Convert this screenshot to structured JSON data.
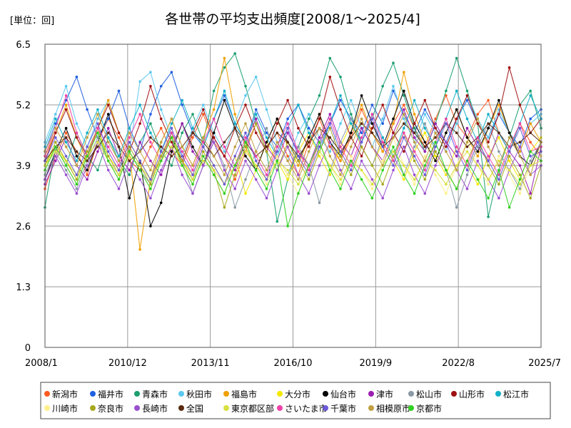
{
  "chart_data": {
    "type": "line",
    "title": "各世帯の平均支出頻度[2008/1～2025/4]",
    "unit_label": "[単位：回]",
    "xlabel": "",
    "ylabel": "",
    "ylim": [
      0,
      6.5
    ],
    "y_ticks": [
      "0",
      "1.3",
      "2.6",
      "3.9",
      "5.2",
      "6.5"
    ],
    "x_ticks": [
      "2008/1",
      "2010/12",
      "2013/11",
      "2016/10",
      "2019/9",
      "2022/8",
      "2025/7"
    ],
    "x_range": [
      "2008/1",
      "2025/7"
    ],
    "grid": true,
    "legend_position": "bottom",
    "series": [
      {
        "name": "新潟市",
        "color": "#ff5a1f",
        "values": [
          3.4,
          4.1,
          4.6,
          4.2,
          3.7,
          4.4,
          4.9,
          4.5,
          4.0,
          3.8,
          4.3,
          4.7,
          4.2,
          3.9,
          4.5,
          5.0,
          4.4,
          4.1,
          3.6,
          4.2,
          4.8,
          4.3,
          4.6,
          4.1,
          3.7,
          4.4,
          4.9,
          4.3,
          4.0,
          4.5,
          5.1,
          4.6,
          4.2,
          4.8,
          5.2,
          4.7,
          4.3,
          4.9,
          5.4,
          4.8,
          4.5,
          5.0,
          5.3,
          4.6,
          4.2,
          4.8,
          4.4,
          4.1
        ]
      },
      {
        "name": "福井市",
        "color": "#1f5fe0",
        "values": [
          4.2,
          4.8,
          5.3,
          5.8,
          5.1,
          4.5,
          4.9,
          5.5,
          4.7,
          4.2,
          5.0,
          5.6,
          5.9,
          5.2,
          4.6,
          4.3,
          4.9,
          5.4,
          4.8,
          4.4,
          5.1,
          4.6,
          4.3,
          4.9,
          5.2,
          4.7,
          4.4,
          4.8,
          5.3,
          4.9,
          4.6,
          5.2,
          4.8,
          5.5,
          5.0,
          4.6,
          5.1,
          4.7,
          4.4,
          4.9,
          5.3,
          4.8,
          4.5,
          5.0,
          4.6,
          4.3,
          4.9,
          5.1
        ]
      },
      {
        "name": "青森市",
        "color": "#1a9e6e",
        "values": [
          3.0,
          4.3,
          3.9,
          4.6,
          4.1,
          3.8,
          4.5,
          4.0,
          3.7,
          4.4,
          4.8,
          4.2,
          3.9,
          4.6,
          5.0,
          4.4,
          5.5,
          6.0,
          6.3,
          5.6,
          4.8,
          4.2,
          2.7,
          3.6,
          4.3,
          4.9,
          5.4,
          6.2,
          5.8,
          5.0,
          4.4,
          4.9,
          5.6,
          6.1,
          5.4,
          4.7,
          4.2,
          4.8,
          5.5,
          6.2,
          5.5,
          4.8,
          2.8,
          3.8,
          4.5,
          5.2,
          5.5,
          4.7
        ]
      },
      {
        "name": "秋田市",
        "color": "#5bc8f0",
        "values": [
          4.4,
          5.0,
          5.6,
          4.8,
          4.3,
          4.9,
          5.3,
          4.6,
          4.2,
          5.7,
          5.9,
          5.1,
          4.5,
          4.1,
          4.7,
          5.2,
          4.6,
          4.2,
          4.8,
          5.4,
          5.8,
          5.1,
          4.4,
          4.0,
          4.6,
          5.0,
          4.5,
          4.2,
          4.8,
          5.3,
          4.7,
          4.3,
          4.9,
          5.6,
          4.9,
          4.4,
          5.0,
          4.6,
          4.2,
          4.8,
          5.4,
          4.9,
          4.5,
          5.1,
          4.6,
          4.2,
          4.8,
          5.0
        ]
      },
      {
        "name": "福島市",
        "color": "#f0a000",
        "values": [
          4.1,
          4.6,
          5.2,
          4.5,
          4.0,
          4.7,
          5.3,
          4.6,
          4.2,
          2.1,
          3.6,
          4.4,
          4.9,
          4.3,
          3.9,
          4.5,
          5.1,
          6.2,
          5.0,
          4.3,
          3.8,
          4.4,
          4.9,
          4.3,
          3.9,
          4.5,
          5.0,
          4.4,
          4.0,
          4.6,
          5.2,
          4.6,
          4.2,
          4.8,
          5.9,
          5.0,
          4.4,
          4.0,
          4.6,
          5.1,
          4.5,
          4.1,
          4.7,
          5.2,
          4.6,
          4.2,
          4.8,
          4.4
        ]
      },
      {
        "name": "大分市",
        "color": "#f5e800",
        "values": [
          3.9,
          4.3,
          4.0,
          3.6,
          4.2,
          4.6,
          4.1,
          3.8,
          4.4,
          4.0,
          3.6,
          4.1,
          4.5,
          4.0,
          3.7,
          4.3,
          3.9,
          3.5,
          4.1,
          3.3,
          3.8,
          4.4,
          4.0,
          3.6,
          4.2,
          4.6,
          4.1,
          3.7,
          4.3,
          4.8,
          4.3,
          3.9,
          4.4,
          4.0,
          3.6,
          4.2,
          4.6,
          4.1,
          3.7,
          4.3,
          3.9,
          3.5,
          4.1,
          4.5,
          4.0,
          3.6,
          4.2,
          4.5
        ]
      },
      {
        "name": "仙台市",
        "color": "#000000",
        "values": [
          3.6,
          4.2,
          4.7,
          4.1,
          3.8,
          4.4,
          5.0,
          4.3,
          3.2,
          4.0,
          2.6,
          3.1,
          4.2,
          4.8,
          4.3,
          3.9,
          4.6,
          5.3,
          4.7,
          4.1,
          3.8,
          4.4,
          4.9,
          4.4,
          4.0,
          4.5,
          5.0,
          4.4,
          4.1,
          4.6,
          5.4,
          4.8,
          4.3,
          4.9,
          5.5,
          4.8,
          4.4,
          4.0,
          4.6,
          5.1,
          4.5,
          4.2,
          4.7,
          5.3,
          4.6,
          4.1,
          3.9,
          4.4
        ]
      },
      {
        "name": "津市",
        "color": "#9a1fb0",
        "values": [
          3.5,
          4.0,
          4.5,
          3.9,
          3.6,
          4.2,
          4.7,
          4.1,
          3.8,
          4.4,
          4.0,
          3.7,
          4.3,
          4.8,
          4.2,
          3.9,
          4.5,
          4.1,
          3.8,
          4.4,
          4.9,
          4.3,
          4.0,
          4.6,
          4.2,
          3.9,
          4.5,
          5.0,
          4.4,
          4.1,
          4.7,
          4.3,
          4.0,
          4.6,
          5.1,
          4.5,
          4.2,
          4.8,
          4.4,
          4.1,
          4.7,
          4.3,
          4.0,
          4.6,
          4.2,
          3.9,
          3.3,
          4.3
        ]
      },
      {
        "name": "松山市",
        "color": "#8a9aa6",
        "values": [
          3.7,
          4.2,
          3.8,
          3.4,
          4.0,
          4.5,
          4.0,
          3.6,
          4.2,
          3.8,
          3.5,
          4.1,
          4.6,
          4.0,
          3.3,
          3.9,
          4.4,
          3.9,
          3.0,
          3.6,
          4.2,
          4.7,
          4.1,
          3.7,
          4.3,
          3.9,
          3.1,
          3.8,
          4.4,
          4.9,
          4.3,
          3.9,
          4.5,
          4.1,
          3.7,
          4.3,
          4.8,
          4.2,
          3.8,
          3.0,
          3.7,
          4.3,
          4.8,
          4.2,
          3.8,
          3.4,
          4.0,
          4.4
        ]
      },
      {
        "name": "山形市",
        "color": "#a01010",
        "values": [
          4.0,
          4.6,
          5.1,
          4.5,
          4.1,
          4.7,
          5.2,
          4.6,
          4.2,
          4.8,
          5.6,
          4.9,
          4.4,
          4.0,
          4.6,
          5.1,
          4.5,
          4.1,
          4.7,
          5.2,
          4.6,
          4.2,
          4.8,
          5.3,
          4.7,
          4.3,
          4.9,
          5.8,
          5.1,
          4.5,
          4.1,
          4.7,
          5.2,
          4.6,
          4.2,
          4.8,
          5.3,
          4.7,
          4.3,
          4.9,
          5.4,
          4.8,
          4.4,
          5.0,
          6.0,
          5.2,
          4.6,
          4.9
        ]
      },
      {
        "name": "松江市",
        "color": "#10b0c8",
        "values": [
          4.3,
          4.9,
          4.4,
          4.0,
          4.6,
          5.1,
          4.5,
          4.1,
          4.7,
          5.2,
          4.6,
          4.2,
          4.8,
          5.3,
          4.7,
          4.3,
          4.9,
          5.5,
          4.8,
          4.4,
          5.0,
          4.5,
          4.1,
          4.7,
          5.2,
          4.6,
          4.2,
          4.8,
          5.4,
          4.8,
          4.4,
          5.0,
          4.5,
          4.1,
          4.7,
          5.3,
          4.7,
          4.3,
          4.9,
          5.5,
          4.9,
          4.4,
          5.0,
          4.6,
          4.2,
          4.8,
          5.4,
          4.9
        ]
      },
      {
        "name": "川崎市",
        "color": "#fff08a",
        "values": [
          3.8,
          4.3,
          3.9,
          3.5,
          4.1,
          4.6,
          4.0,
          3.6,
          4.2,
          3.8,
          3.4,
          4.0,
          4.5,
          3.9,
          3.5,
          4.1,
          3.7,
          3.3,
          3.9,
          4.4,
          3.9,
          3.5,
          4.1,
          3.7,
          3.3,
          3.9,
          4.4,
          3.9,
          3.5,
          4.1,
          3.8,
          3.4,
          4.0,
          4.5,
          3.9,
          3.5,
          4.1,
          3.7,
          3.3,
          3.9,
          4.4,
          3.9,
          3.5,
          4.1,
          3.7,
          3.3,
          3.9,
          4.1
        ]
      },
      {
        "name": "奈良市",
        "color": "#a8a820",
        "values": [
          3.9,
          4.4,
          4.0,
          3.6,
          4.2,
          4.7,
          4.1,
          3.7,
          4.3,
          3.9,
          3.5,
          4.1,
          4.6,
          4.0,
          3.6,
          4.2,
          3.8,
          3.0,
          3.7,
          4.3,
          4.8,
          4.2,
          3.8,
          4.4,
          4.0,
          3.6,
          4.2,
          4.7,
          4.1,
          3.7,
          4.3,
          3.9,
          3.5,
          4.1,
          4.6,
          4.0,
          3.6,
          4.2,
          3.8,
          3.4,
          4.0,
          4.5,
          3.9,
          3.5,
          4.1,
          3.7,
          3.2,
          3.9
        ]
      },
      {
        "name": "長崎市",
        "color": "#9a4fd0",
        "values": [
          3.6,
          4.1,
          3.7,
          3.3,
          3.9,
          4.4,
          3.8,
          3.4,
          4.0,
          3.6,
          3.2,
          3.8,
          4.3,
          3.7,
          3.3,
          3.9,
          4.4,
          3.8,
          3.4,
          4.0,
          3.6,
          3.2,
          3.8,
          4.3,
          3.7,
          3.3,
          3.9,
          4.4,
          3.8,
          3.4,
          4.0,
          3.6,
          3.2,
          3.8,
          4.3,
          3.7,
          3.3,
          3.9,
          4.4,
          3.8,
          3.4,
          4.0,
          3.6,
          3.2,
          3.8,
          4.3,
          3.7,
          3.9
        ]
      },
      {
        "name": "全国",
        "color": "#5a2a10",
        "values": [
          4.0,
          4.3,
          4.5,
          4.2,
          4.0,
          4.3,
          4.6,
          4.3,
          4.0,
          4.2,
          4.5,
          4.3,
          4.1,
          4.3,
          4.6,
          4.4,
          4.1,
          4.4,
          4.7,
          4.4,
          4.1,
          4.3,
          4.6,
          4.4,
          4.1,
          4.4,
          4.7,
          4.5,
          4.2,
          4.5,
          4.8,
          4.6,
          4.3,
          4.5,
          4.8,
          4.6,
          4.3,
          4.5,
          4.8,
          4.6,
          4.3,
          4.5,
          4.8,
          4.6,
          4.3,
          4.4,
          4.6,
          4.4
        ]
      },
      {
        "name": "東京都区部",
        "color": "#d8e040",
        "values": [
          3.9,
          4.2,
          4.0,
          3.7,
          4.1,
          4.4,
          4.0,
          3.7,
          4.1,
          3.9,
          3.6,
          4.0,
          4.3,
          3.9,
          3.6,
          4.0,
          3.8,
          3.5,
          3.9,
          4.2,
          3.9,
          3.6,
          4.0,
          3.8,
          3.5,
          3.9,
          4.2,
          3.9,
          3.6,
          4.0,
          3.8,
          3.5,
          3.9,
          4.2,
          3.9,
          3.6,
          4.0,
          3.8,
          3.5,
          3.9,
          4.2,
          3.9,
          3.6,
          4.0,
          3.8,
          3.5,
          3.9,
          4.0
        ]
      },
      {
        "name": "さいたま市",
        "color": "#f040a8",
        "values": [
          4.1,
          4.7,
          5.4,
          4.6,
          4.1,
          4.7,
          4.3,
          3.9,
          4.5,
          5.0,
          4.4,
          4.0,
          4.6,
          4.2,
          3.8,
          4.4,
          4.9,
          4.3,
          3.9,
          4.5,
          4.1,
          3.7,
          4.3,
          4.8,
          4.2,
          3.8,
          4.4,
          4.9,
          4.3,
          3.9,
          4.5,
          5.0,
          4.4,
          4.0,
          4.6,
          4.2,
          3.8,
          4.4,
          4.9,
          4.3,
          3.9,
          4.5,
          4.1,
          3.7,
          4.3,
          4.8,
          4.2,
          4.3
        ]
      },
      {
        "name": "千葉市",
        "color": "#6a5ad8",
        "values": [
          4.0,
          4.5,
          4.1,
          3.7,
          4.3,
          4.8,
          4.2,
          3.8,
          4.4,
          4.0,
          3.6,
          4.2,
          4.7,
          4.1,
          3.7,
          4.3,
          3.9,
          3.5,
          4.1,
          4.6,
          4.0,
          3.6,
          4.2,
          4.7,
          4.1,
          3.7,
          4.3,
          4.8,
          4.2,
          3.8,
          4.4,
          4.9,
          4.3,
          3.9,
          4.5,
          4.1,
          3.7,
          4.3,
          4.8,
          4.2,
          3.8,
          4.4,
          4.0,
          3.6,
          4.2,
          4.7,
          4.1,
          4.2
        ]
      },
      {
        "name": "相模原市",
        "color": "#c0a040",
        "values": [
          4.2,
          4.7,
          4.3,
          3.9,
          4.5,
          5.0,
          4.4,
          4.0,
          4.6,
          4.2,
          3.8,
          4.4,
          4.9,
          4.3,
          3.9,
          4.5,
          4.1,
          3.7,
          4.3,
          4.8,
          4.2,
          3.8,
          4.4,
          4.0,
          3.6,
          4.2,
          4.7,
          4.1,
          3.7,
          4.3,
          4.9,
          4.3,
          3.9,
          4.5,
          5.0,
          4.4,
          4.0,
          4.6,
          4.2,
          3.8,
          4.4,
          4.9,
          4.3,
          3.9,
          4.5,
          4.1,
          3.7,
          4.4
        ]
      },
      {
        "name": "京都市",
        "color": "#30d020",
        "values": [
          3.8,
          4.3,
          3.9,
          3.5,
          4.1,
          4.6,
          4.0,
          3.6,
          4.2,
          3.8,
          3.4,
          4.0,
          4.5,
          3.9,
          3.5,
          4.1,
          3.7,
          3.3,
          3.9,
          4.4,
          3.8,
          3.4,
          4.0,
          2.6,
          3.3,
          3.9,
          4.4,
          3.8,
          3.4,
          4.0,
          3.6,
          3.2,
          3.8,
          4.3,
          3.7,
          3.3,
          3.9,
          4.4,
          3.8,
          3.4,
          4.0,
          3.6,
          3.2,
          3.8,
          3.0,
          3.6,
          4.2,
          4.0
        ]
      }
    ]
  }
}
